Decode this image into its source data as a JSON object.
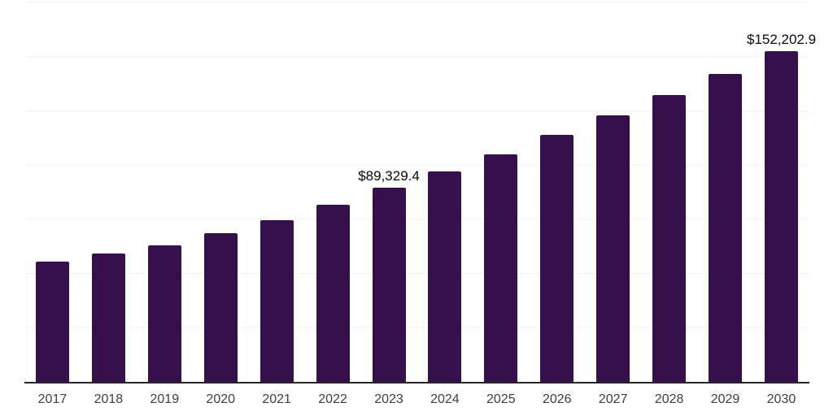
{
  "chart_data": {
    "type": "bar",
    "title": "",
    "xlabel": "",
    "ylabel": "",
    "categories": [
      "2017",
      "2018",
      "2019",
      "2020",
      "2021",
      "2022",
      "2023",
      "2024",
      "2025",
      "2026",
      "2027",
      "2028",
      "2029",
      "2030"
    ],
    "values": [
      55400,
      59100,
      62900,
      68400,
      74400,
      81500,
      89329.4,
      97000,
      104800,
      113500,
      122800,
      132000,
      141900,
      152202.9
    ],
    "annotations": [
      {
        "category": "2023",
        "text": "$89,329.4"
      },
      {
        "category": "2030",
        "text": "$152,202.9"
      }
    ],
    "ylim": [
      0,
      175000
    ],
    "grid_step": 25000,
    "grid": true,
    "legend": false,
    "y_tick_labels_visible": false,
    "colors": {
      "bar": "#35104B",
      "gridline": "#F2F2F5",
      "axis_line": "#262626",
      "x_tick_label": "#3F3F3F",
      "data_label": "#0A0A0A",
      "background": "#FFFFFF"
    }
  }
}
